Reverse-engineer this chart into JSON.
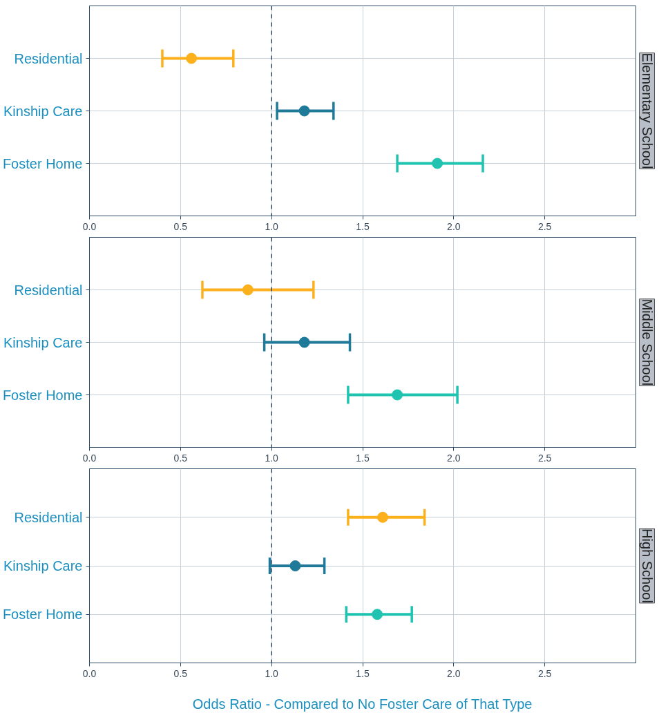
{
  "chart_data": [
    {
      "type": "scatter",
      "orientation": "horizontal",
      "title": "Elementary School",
      "categories": [
        "Residential",
        "Kinship Care",
        "Foster Home"
      ],
      "values": [
        0.56,
        1.18,
        1.91
      ],
      "errors": [
        [
          0.4,
          0.79
        ],
        [
          1.03,
          1.34
        ],
        [
          1.69,
          2.16
        ]
      ],
      "colors": [
        "#fbb01c",
        "#1f7a99",
        "#1fc3b0"
      ],
      "xlim": [
        0,
        3
      ],
      "xticks": [
        {
          "value": 0,
          "label": "0.0"
        },
        0.5,
        {
          "value": 1,
          "label": "1.0"
        },
        1.5,
        {
          "value": 2,
          "label": "2.0"
        },
        2.5
      ],
      "ref_lines": [
        {
          "axis": "x",
          "value": 1,
          "line_style": "dashed",
          "color": "#2f4a66"
        }
      ],
      "grid": true,
      "marker": "circle"
    },
    {
      "type": "scatter",
      "orientation": "horizontal",
      "title": "Middle School",
      "categories": [
        "Residential",
        "Kinship Care",
        "Foster Home"
      ],
      "values": [
        0.87,
        1.18,
        1.69
      ],
      "errors": [
        [
          0.62,
          1.23
        ],
        [
          0.96,
          1.43
        ],
        [
          1.42,
          2.02
        ]
      ],
      "colors": [
        "#fbb01c",
        "#1f7a99",
        "#1fc3b0"
      ],
      "xlim": [
        0,
        3
      ],
      "xticks": [
        {
          "value": 0,
          "label": "0.0"
        },
        0.5,
        {
          "value": 1,
          "label": "1.0"
        },
        1.5,
        {
          "value": 2,
          "label": "2.0"
        },
        2.5
      ],
      "ref_lines": [
        {
          "axis": "x",
          "value": 1,
          "line_style": "dashed",
          "color": "#2f4a66"
        }
      ],
      "grid": true,
      "marker": "circle"
    },
    {
      "type": "scatter",
      "orientation": "horizontal",
      "title": "High School",
      "xlabel": "Odds Ratio - Compared to No Foster Care of That Type",
      "categories": [
        "Residential",
        "Kinship Care",
        "Foster Home"
      ],
      "values": [
        1.61,
        1.13,
        1.58
      ],
      "errors": [
        [
          1.42,
          1.84
        ],
        [
          0.99,
          1.29
        ],
        [
          1.41,
          1.77
        ]
      ],
      "colors": [
        "#fbb01c",
        "#1f7a99",
        "#1fc3b0"
      ],
      "xlim": [
        0,
        3
      ],
      "xticks": [
        {
          "value": 0,
          "label": "0.0"
        },
        0.5,
        {
          "value": 1,
          "label": "1.0"
        },
        1.5,
        {
          "value": 2,
          "label": "2.0"
        },
        2.5
      ],
      "ref_lines": [
        {
          "axis": "x",
          "value": 1,
          "line_style": "dashed",
          "color": "#2f4a66"
        }
      ],
      "grid": true,
      "marker": "circle"
    }
  ]
}
